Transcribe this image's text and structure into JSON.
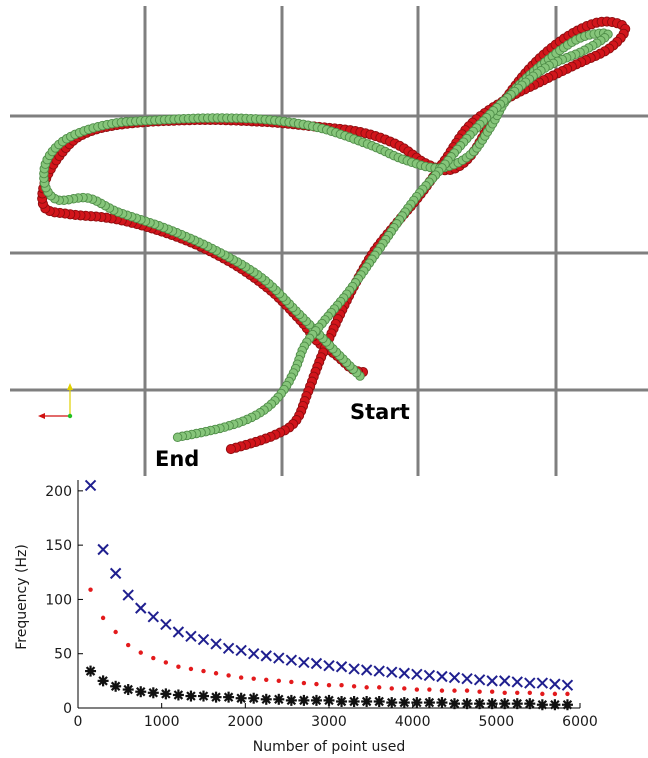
{
  "colors": {
    "grid": "#7f7f7f",
    "traj_red": "#d2151b",
    "traj_red_dark": "#8e0c0f",
    "traj_green": "#86c57a",
    "traj_green_dark": "#4f8d48",
    "blue_x": "#1f1f8f",
    "red_dot": "#e31a1c",
    "black_star": "#111111",
    "axis": "#000000"
  },
  "top_panel": {
    "start_label": "Start",
    "end_label": "End"
  },
  "chart_data": {
    "type": "scatter",
    "xlabel": "Number of point used",
    "ylabel": "Frequency (Hz)",
    "xlim": [
      0,
      6000
    ],
    "ylim": [
      0,
      210
    ],
    "xticks": [
      0,
      1000,
      2000,
      3000,
      4000,
      5000,
      6000
    ],
    "yticks": [
      0,
      50,
      100,
      150,
      200
    ],
    "x": [
      150,
      300,
      450,
      600,
      750,
      900,
      1050,
      1200,
      1350,
      1500,
      1650,
      1800,
      1950,
      2100,
      2250,
      2400,
      2550,
      2700,
      2850,
      3000,
      3150,
      3300,
      3450,
      3600,
      3750,
      3900,
      4050,
      4200,
      4350,
      4500,
      4650,
      4800,
      4950,
      5100,
      5250,
      5400,
      5550,
      5700,
      5850
    ],
    "series": [
      {
        "marker": "x",
        "color": "#1f1f8f",
        "values": [
          205,
          146,
          124,
          104,
          92,
          84,
          77,
          70,
          66,
          63,
          59,
          55,
          53,
          50,
          48,
          46,
          44,
          42,
          41,
          39,
          38,
          36,
          35,
          34,
          33,
          32,
          31,
          30,
          29,
          28,
          27,
          26,
          25,
          25,
          24,
          23,
          23,
          22,
          21
        ]
      },
      {
        "marker": "dot",
        "color": "#e31a1c",
        "values": [
          109,
          83,
          70,
          58,
          51,
          46,
          42,
          38,
          36,
          34,
          32,
          30,
          28,
          27,
          26,
          25,
          24,
          23,
          22,
          21,
          21,
          20,
          19,
          19,
          18,
          18,
          17,
          17,
          16,
          16,
          16,
          15,
          15,
          14,
          14,
          14,
          13,
          13,
          13
        ]
      },
      {
        "marker": "star",
        "color": "#111111",
        "values": [
          34,
          25,
          20,
          17,
          15,
          14,
          13,
          12,
          11,
          11,
          10,
          10,
          9,
          9,
          8,
          8,
          7,
          7,
          7,
          7,
          6,
          6,
          6,
          6,
          5,
          5,
          5,
          5,
          5,
          4,
          4,
          4,
          4,
          4,
          4,
          4,
          3,
          3,
          3
        ]
      }
    ]
  }
}
